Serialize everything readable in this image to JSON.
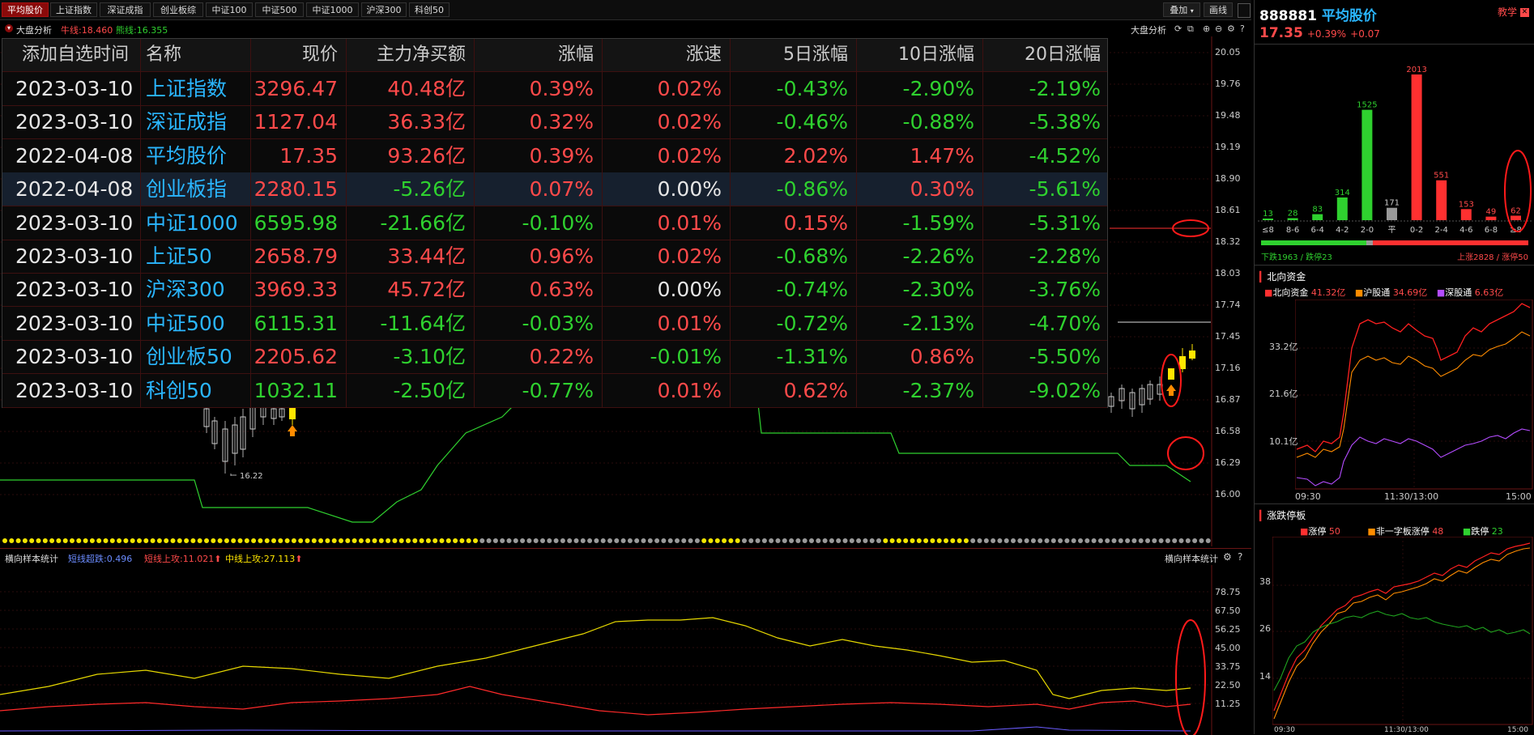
{
  "tabs": [
    "平均股价",
    "上证指数",
    "深证成指",
    "创业板综",
    "中证100",
    "中证500",
    "中证1000",
    "沪深300",
    "科创50"
  ],
  "top_right": {
    "overlay_label": "叠加",
    "draw_label": "画线"
  },
  "subbar": {
    "title": "大盘分析",
    "cow": "牛线:18.460",
    "bear": "熊线:16.355",
    "right_title": "大盘分析"
  },
  "table": {
    "headers": [
      "添加自选时间",
      "名称",
      "现价",
      "主力净买额",
      "涨幅",
      "涨速",
      "5日涨幅",
      "10日涨幅",
      "20日涨幅"
    ],
    "rows": [
      {
        "date": "2023-03-10",
        "name": "上证指数",
        "price": "3296.47",
        "flow": "40.48亿",
        "chg": "0.39%",
        "speed": "0.02%",
        "d5": "-0.43%",
        "d10": "-2.90%",
        "d20": "-2.19%"
      },
      {
        "date": "2023-03-10",
        "name": "深证成指",
        "price": "1127.04",
        "flow": "36.33亿",
        "chg": "0.32%",
        "speed": "0.02%",
        "d5": "-0.46%",
        "d10": "-0.88%",
        "d20": "-5.38%"
      },
      {
        "date": "2022-04-08",
        "name": "平均股价",
        "price": "17.35",
        "flow": "93.26亿",
        "chg": "0.39%",
        "speed": "0.02%",
        "d5": "2.02%",
        "d10": "1.47%",
        "d20": "-4.52%"
      },
      {
        "date": "2022-04-08",
        "name": "创业板指",
        "price": "2280.15",
        "flow": "-5.26亿",
        "chg": "0.07%",
        "speed": "0.00%",
        "d5": "-0.86%",
        "d10": "0.30%",
        "d20": "-5.61%"
      },
      {
        "date": "2023-03-10",
        "name": "中证1000",
        "price": "6595.98",
        "flow": "-21.66亿",
        "chg": "-0.10%",
        "speed": "0.01%",
        "d5": "0.15%",
        "d10": "-1.59%",
        "d20": "-5.31%"
      },
      {
        "date": "2023-03-10",
        "name": "上证50",
        "price": "2658.79",
        "flow": "33.44亿",
        "chg": "0.96%",
        "speed": "0.02%",
        "d5": "-0.68%",
        "d10": "-2.26%",
        "d20": "-2.28%"
      },
      {
        "date": "2023-03-10",
        "name": "沪深300",
        "price": "3969.33",
        "flow": "45.72亿",
        "chg": "0.63%",
        "speed": "0.00%",
        "d5": "-0.74%",
        "d10": "-2.30%",
        "d20": "-3.76%"
      },
      {
        "date": "2023-03-10",
        "name": "中证500",
        "price": "6115.31",
        "flow": "-11.64亿",
        "chg": "-0.03%",
        "speed": "0.01%",
        "d5": "-0.72%",
        "d10": "-2.13%",
        "d20": "-4.70%"
      },
      {
        "date": "2023-03-10",
        "name": "创业板50",
        "price": "2205.62",
        "flow": "-3.10亿",
        "chg": "0.22%",
        "speed": "-0.01%",
        "d5": "-1.31%",
        "d10": "0.86%",
        "d20": "-5.50%"
      },
      {
        "date": "2023-03-10",
        "name": "科创50",
        "price": "1032.11",
        "flow": "-2.50亿",
        "chg": "-0.77%",
        "speed": "0.01%",
        "d5": "0.62%",
        "d10": "-2.37%",
        "d20": "-9.02%"
      }
    ]
  },
  "main_axis": [
    "20.05",
    "19.76",
    "19.48",
    "19.19",
    "18.90",
    "18.61",
    "18.32",
    "18.03",
    "17.74",
    "17.45",
    "17.16",
    "16.87",
    "16.58",
    "16.29",
    "16.00"
  ],
  "low_label": "16.22",
  "lower_panel": {
    "title": "横向样本统计",
    "short_break": "短线超跌:0.496",
    "short_up": "短线上攻:11.021",
    "mid_up": "中线上攻:27.113",
    "right_title": "横向样本统计",
    "axis": [
      "78.75",
      "67.50",
      "56.25",
      "45.00",
      "33.75",
      "22.50",
      "11.25"
    ]
  },
  "right": {
    "code": "888881",
    "name": "平均股价",
    "teach": "教学",
    "price": "17.35",
    "pct": "+0.39%",
    "chg": "+0.07",
    "dist_labels": [
      "≤8",
      "8-6",
      "6-4",
      "4-2",
      "2-0",
      "平",
      "0-2",
      "2-4",
      "4-6",
      "6-8",
      "≥8"
    ],
    "dist_values": [
      "13",
      "28",
      "83",
      "314",
      "1525",
      "171",
      "2013",
      "551",
      "153",
      "49",
      "62"
    ],
    "down_text": "下跌1963 / 跌停23",
    "up_text": "上涨2828 / 涨停50",
    "north": {
      "title": "北向资金",
      "l1": "北向资金",
      "v1": "41.32亿",
      "l2": "沪股通",
      "v2": "34.69亿",
      "l3": "深股通",
      "v3": "6.63亿",
      "axis": [
        "33.2亿",
        "21.6亿",
        "10.1亿"
      ],
      "times": [
        "09:30",
        "11:30/13:00",
        "15:00"
      ]
    },
    "limit": {
      "title": "涨跌停板",
      "l1": "涨停",
      "v1": "50",
      "l2": "非一字板涨停",
      "v2": "48",
      "l3": "跌停",
      "v3": "23",
      "axis": [
        "38",
        "26",
        "14"
      ],
      "times": [
        "09:30",
        "11:30/13:00",
        "15:00"
      ]
    }
  },
  "colors": {
    "up": "#ff4a4a",
    "down": "#2fd12f",
    "accent": "#2ab6ff",
    "tab_active": "#8a0a0a"
  }
}
